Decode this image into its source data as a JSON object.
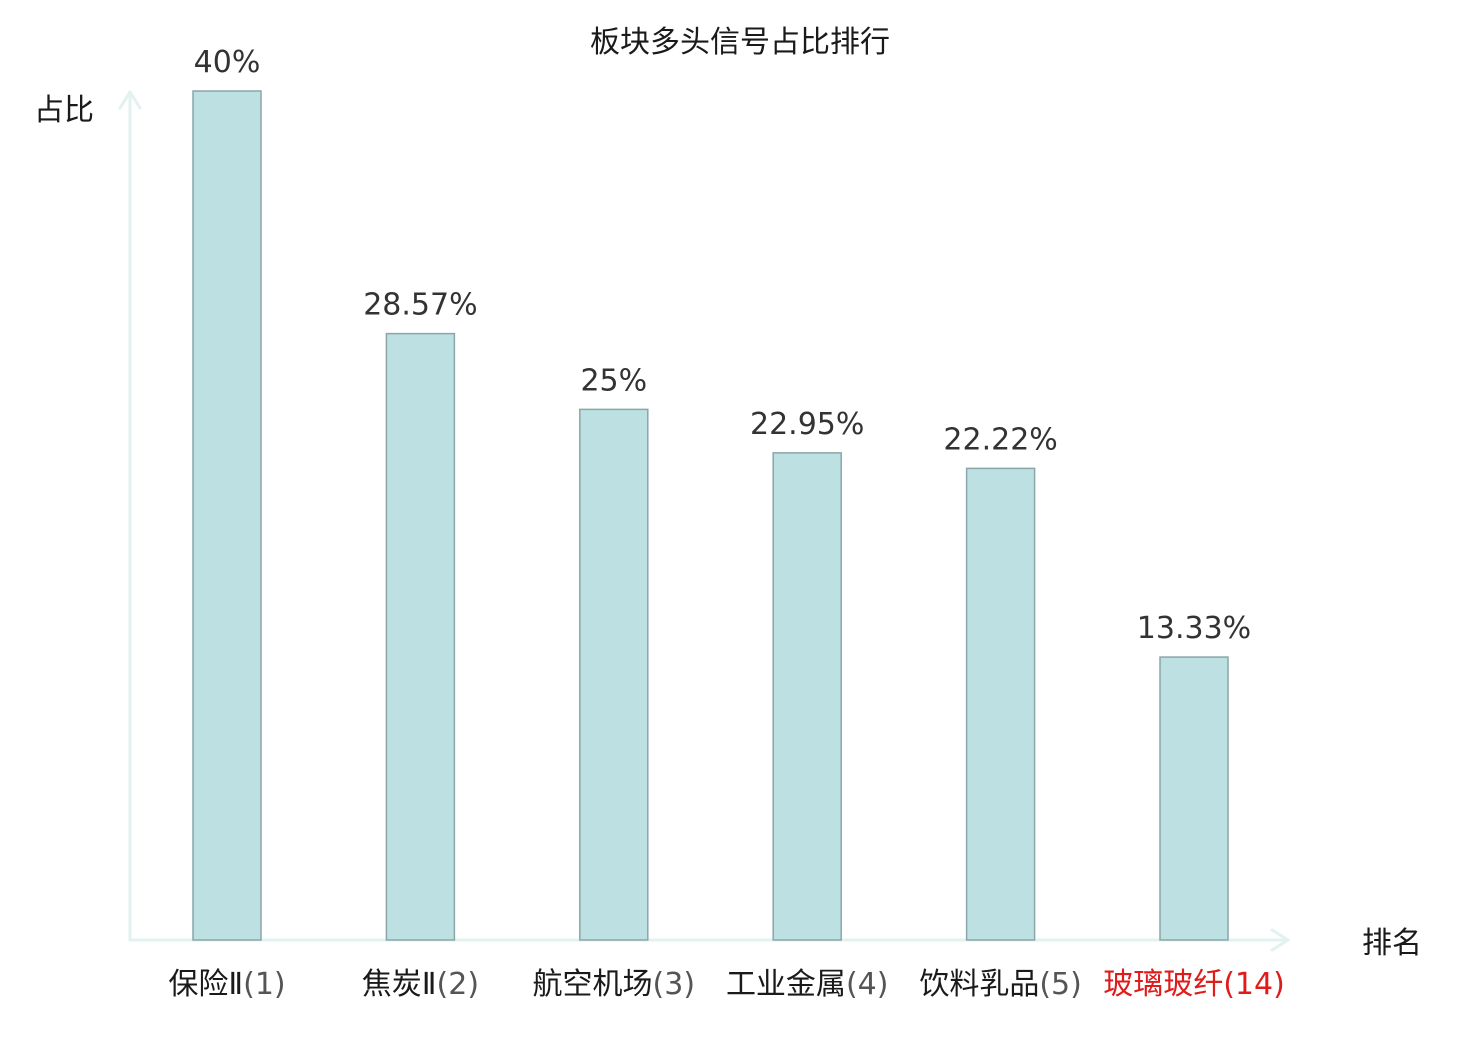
{
  "chart_data": {
    "type": "bar",
    "title": "板块多头信号占比排行",
    "xlabel": "排名",
    "ylabel": "占比",
    "categories": [
      {
        "name": "保险Ⅱ",
        "rank": "(1)",
        "highlight": false
      },
      {
        "name": "焦炭Ⅱ",
        "rank": "(2)",
        "highlight": false
      },
      {
        "name": "航空机场",
        "rank": "(3)",
        "highlight": false
      },
      {
        "name": "工业金属",
        "rank": "(4)",
        "highlight": false
      },
      {
        "name": "饮料乳品",
        "rank": "(5)",
        "highlight": false
      },
      {
        "name": "玻璃玻纤",
        "rank": "(14)",
        "highlight": true
      }
    ],
    "values": [
      40,
      28.57,
      25,
      22.95,
      22.22,
      13.33
    ],
    "value_labels": [
      "40%",
      "28.57%",
      "25%",
      "22.95%",
      "22.22%",
      "13.33%"
    ],
    "ylim": [
      0,
      40
    ],
    "grid": false,
    "legend": "none"
  },
  "colors": {
    "bar_fill": "#bde0e2",
    "bar_stroke": "#8aa6a8",
    "axis": "#e2f2f0",
    "highlight": "#e01b1b",
    "text": "#1a1a1a"
  }
}
